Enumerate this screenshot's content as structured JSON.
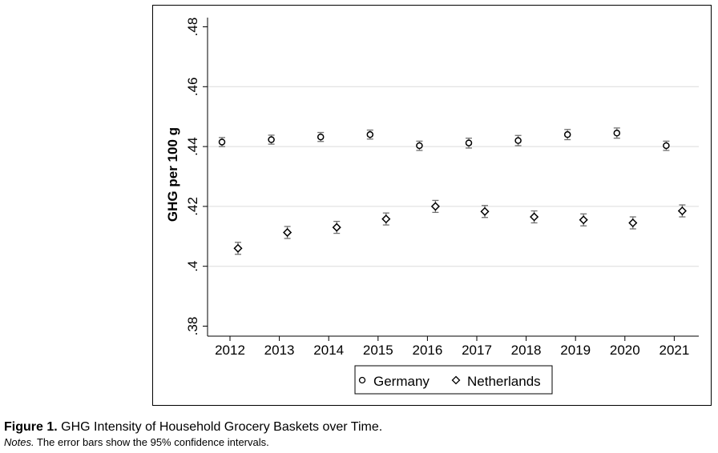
{
  "figure": {
    "label": "Figure 1.",
    "caption": "GHG Intensity of Household Grocery Baskets over Time.",
    "notes_label": "Notes.",
    "notes_text": "The error bars show the 95% confidence intervals."
  },
  "chart_data": {
    "type": "scatter",
    "title": "",
    "xlabel": "",
    "ylabel": "GHG per 100 g",
    "x": [
      2012,
      2013,
      2014,
      2015,
      2016,
      2017,
      2018,
      2019,
      2020,
      2021
    ],
    "x_tick_labels": [
      "2012",
      "2013",
      "2014",
      "2015",
      "2016",
      "2017",
      "2018",
      "2019",
      "2020",
      "2021"
    ],
    "y_ticks": [
      0.38,
      0.4,
      0.42,
      0.44,
      0.46,
      0.48
    ],
    "y_tick_labels": [
      ".38",
      ".4",
      ".42",
      ".44",
      ".46",
      ".48"
    ],
    "ylim": [
      0.38,
      0.48
    ],
    "grid": true,
    "legend_position": "bottom",
    "error_bars": "95% confidence interval",
    "series": [
      {
        "name": "Germany",
        "marker": "circle",
        "values": [
          0.4415,
          0.4423,
          0.4432,
          0.444,
          0.4403,
          0.4412,
          0.442,
          0.444,
          0.4445,
          0.4403
        ],
        "ci_low": [
          0.44,
          0.4408,
          0.4417,
          0.4425,
          0.4387,
          0.4395,
          0.4403,
          0.4423,
          0.4428,
          0.4387
        ],
        "ci_high": [
          0.443,
          0.4438,
          0.4447,
          0.4455,
          0.4418,
          0.4428,
          0.4437,
          0.4457,
          0.4462,
          0.4418
        ]
      },
      {
        "name": "Netherlands",
        "marker": "diamond",
        "values": [
          0.406,
          0.4113,
          0.413,
          0.4158,
          0.42,
          0.4183,
          0.4165,
          0.4155,
          0.4145,
          0.4185
        ],
        "ci_low": [
          0.404,
          0.4093,
          0.411,
          0.4138,
          0.418,
          0.4163,
          0.4145,
          0.4135,
          0.4125,
          0.4165
        ],
        "ci_high": [
          0.408,
          0.4133,
          0.415,
          0.4178,
          0.422,
          0.4203,
          0.4185,
          0.4175,
          0.4165,
          0.4205
        ]
      }
    ]
  },
  "colors": {
    "marker": "#000000",
    "error_bar": "#707070",
    "grid": "#dcdcdc",
    "axis": "#000000"
  }
}
